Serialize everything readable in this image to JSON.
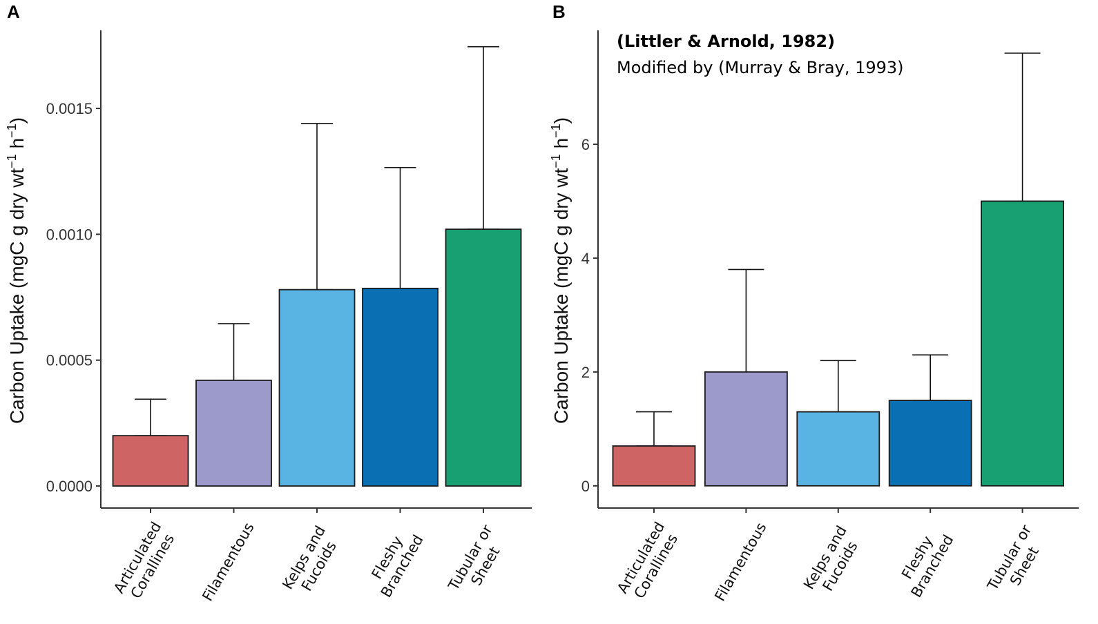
{
  "figure": {
    "panels": [
      "A",
      "B"
    ]
  },
  "chart_data": [
    {
      "panel": "A",
      "type": "bar",
      "categories": [
        [
          "Articulated",
          "Corallines"
        ],
        [
          "Filamentous"
        ],
        [
          "Kelps and",
          "Fucoids"
        ],
        [
          "Fleshy",
          "Branched"
        ],
        [
          "Tubular or",
          "Sheet"
        ]
      ],
      "values": [
        0.0002,
        0.00042,
        0.00078,
        0.000785,
        0.00102
      ],
      "error_upper": [
        0.000345,
        0.000645,
        0.00144,
        0.001265,
        0.001745
      ],
      "colors": [
        "#CE6564",
        "#9C9ACB",
        "#5AB4E3",
        "#0A70B3",
        "#19A072"
      ],
      "ylabel": {
        "main": "Carbon Uptake (mgC g dry wt",
        "exp1": "−1",
        "mid": " h",
        "exp2": "−1",
        "end": ")"
      },
      "ylim": [
        -8.75e-05,
        0.00181
      ],
      "yticks": [
        0.0,
        0.0005,
        0.001,
        0.0015
      ],
      "ytick_labels": [
        "0.0000",
        "0.0005",
        "0.0010",
        "0.0015"
      ],
      "grid": false
    },
    {
      "panel": "B",
      "type": "bar",
      "categories": [
        [
          "Articulated",
          "Corallines"
        ],
        [
          "Filamentous"
        ],
        [
          "Kelps and",
          "Fucoids"
        ],
        [
          "Fleshy",
          "Branched"
        ],
        [
          "Tubular or",
          "Sheet"
        ]
      ],
      "values": [
        0.7,
        2.0,
        1.3,
        1.5,
        5.0
      ],
      "error_upper": [
        1.3,
        3.8,
        2.2,
        2.3,
        7.6
      ],
      "colors": [
        "#CE6564",
        "#9C9ACB",
        "#5AB4E3",
        "#0A70B3",
        "#19A072"
      ],
      "ylabel": {
        "main": "Carbon Uptake (mgC g dry wt",
        "exp1": "−1",
        "mid": " h",
        "exp2": "−1",
        "end": ")"
      },
      "ylim": [
        -0.39,
        8.0
      ],
      "yticks": [
        0,
        2,
        4,
        6
      ],
      "ytick_labels": [
        "0",
        "2",
        "4",
        "6"
      ],
      "annotation": [
        "(Littler & Arnold, 1982)",
        "Modified by (Murray & Bray, 1993)"
      ],
      "grid": false
    }
  ]
}
